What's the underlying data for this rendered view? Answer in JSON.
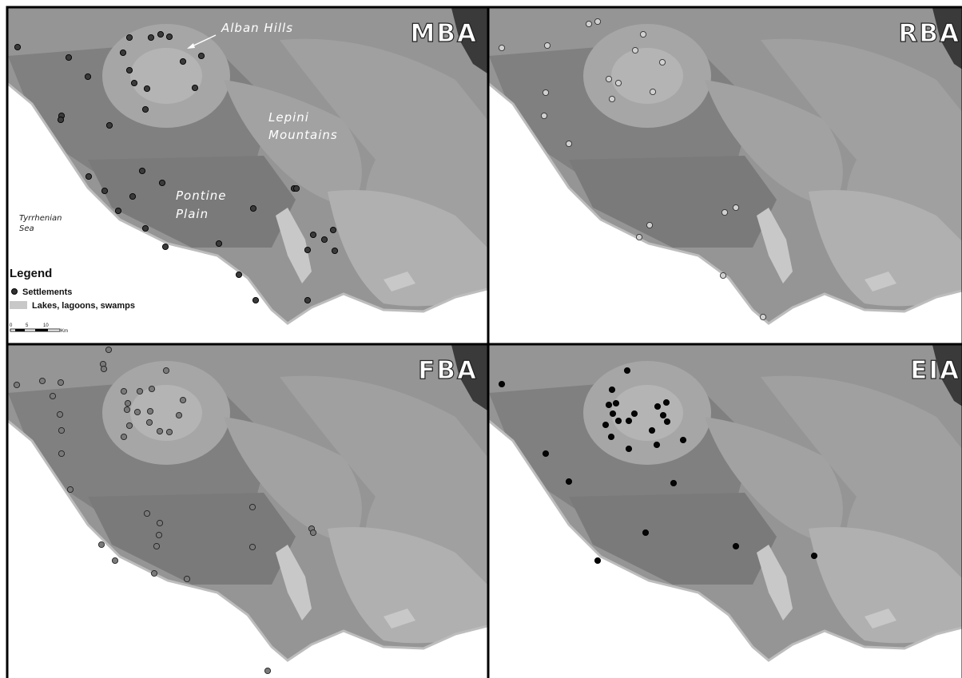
{
  "panels": [
    {
      "label": "MBA"
    },
    {
      "label": "RBA"
    },
    {
      "label": "FBA"
    },
    {
      "label": "EIA"
    }
  ],
  "places": {
    "alban_hills": "Alban Hills",
    "lepini": [
      "Lepini",
      "Mountains"
    ],
    "pontine": [
      "Pontine",
      "Plain"
    ],
    "sea": [
      "Tyrrhenian",
      "Sea"
    ]
  },
  "legend": {
    "title": "Legend",
    "items": [
      "Settlements",
      "Lakes, lagoons, swamps"
    ],
    "scale": [
      "0",
      "5",
      "10",
      "Km"
    ]
  }
}
